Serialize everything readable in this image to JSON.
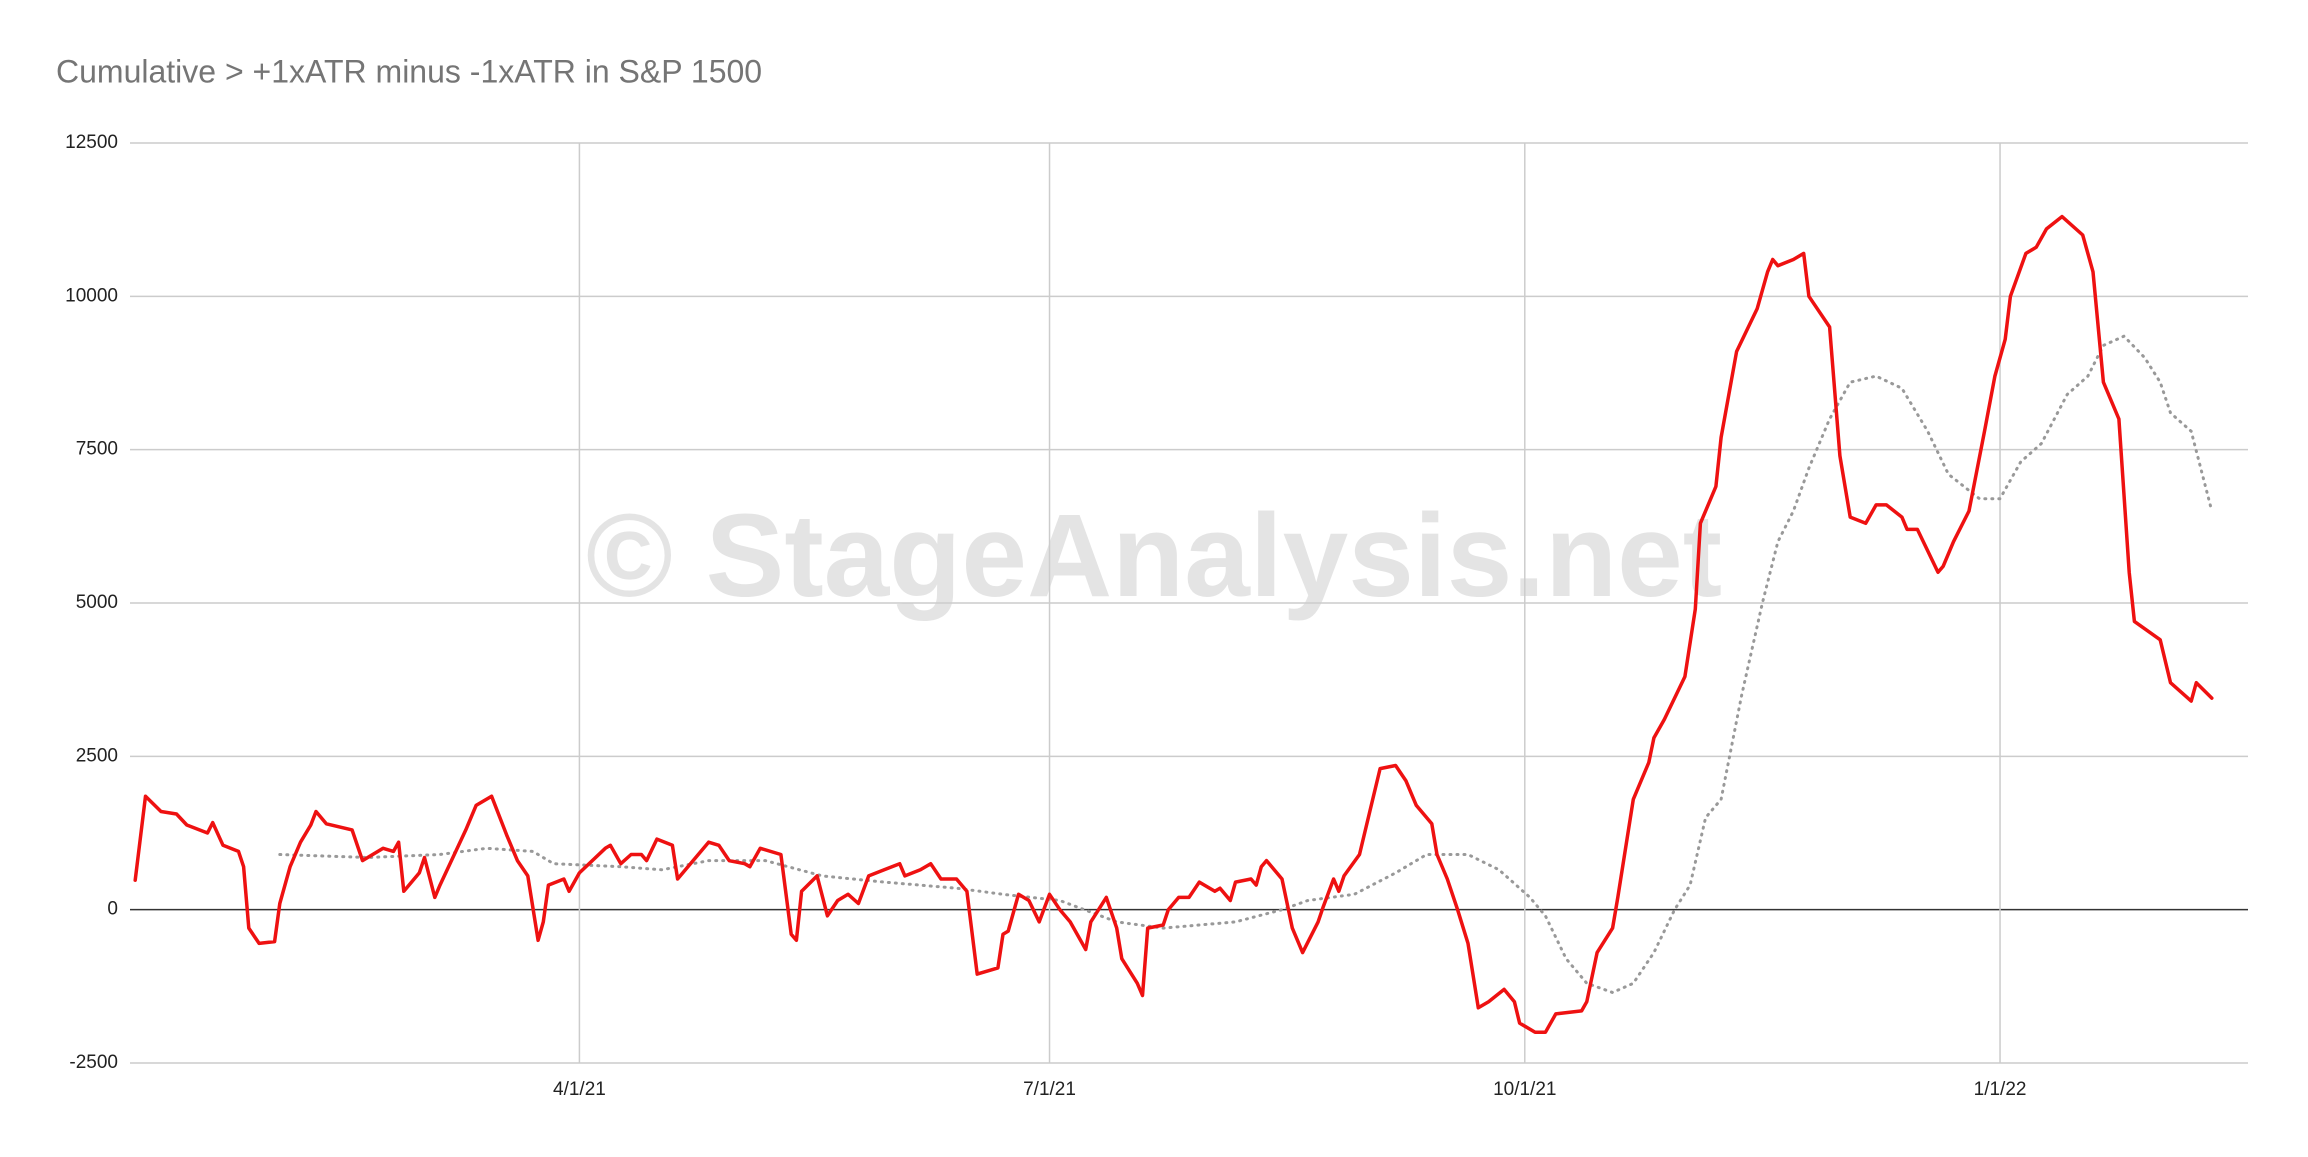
{
  "chart_data": {
    "type": "line",
    "title": "Cumulative > +1xATR minus -1xATR in S&P 1500",
    "watermark": "© StageAnalysis.net",
    "xlim": [
      "1/4/21",
      "2/18/22"
    ],
    "xticks": [
      "4/1/21",
      "7/1/21",
      "10/1/21",
      "1/1/22"
    ],
    "ylim": [
      -2500,
      12500
    ],
    "yticks": [
      -2500,
      0,
      2500,
      5000,
      7500,
      10000,
      12500
    ],
    "grid": true,
    "series": [
      {
        "color": "#ee1111",
        "style": "solid",
        "x": [
          "1/5/21",
          "1/7/21",
          "1/10/21",
          "1/13/21",
          "1/15/21",
          "1/19/21",
          "1/20/21",
          "1/22/21",
          "1/25/21",
          "1/26/21",
          "1/27/21",
          "1/29/21",
          "2/1/21",
          "2/2/21",
          "2/4/21",
          "2/6/21",
          "2/8/21",
          "2/9/21",
          "2/11/21",
          "2/16/21",
          "2/18/21",
          "2/22/21",
          "2/24/21",
          "2/25/21",
          "2/26/21",
          "3/1/21",
          "3/2/21",
          "3/4/21",
          "3/5/21",
          "3/10/21",
          "3/12/21",
          "3/15/21",
          "3/18/21",
          "3/20/21",
          "3/22/21",
          "3/24/21",
          "3/25/21",
          "3/26/21",
          "3/29/21",
          "3/30/21",
          "4/1/21",
          "4/6/21",
          "4/7/21",
          "4/9/21",
          "4/11/21",
          "4/13/21",
          "4/14/21",
          "4/16/21",
          "4/19/21",
          "4/20/21",
          "4/23/21",
          "4/26/21",
          "4/28/21",
          "4/30/21",
          "5/3/21",
          "5/4/21",
          "5/6/21",
          "5/10/21",
          "5/12/21",
          "5/13/21",
          "5/14/21",
          "5/17/21",
          "5/19/21",
          "5/21/21",
          "5/23/21",
          "5/25/21",
          "5/27/21",
          "5/30/21",
          "6/2/21",
          "6/3/21",
          "6/6/21",
          "6/8/21",
          "6/10/21",
          "6/13/21",
          "6/15/21",
          "6/17/21",
          "6/21/21",
          "6/22/21",
          "6/23/21",
          "6/25/21",
          "6/27/21",
          "6/29/21",
          "7/1/21",
          "7/3/21",
          "7/5/21",
          "7/8/21",
          "7/9/21",
          "7/12/21",
          "7/14/21",
          "7/15/21",
          "7/18/21",
          "7/19/21",
          "7/20/21",
          "7/23/21",
          "7/24/21",
          "7/26/21",
          "7/28/21",
          "7/30/21",
          "8/2/21",
          "8/3/21",
          "8/5/21",
          "8/6/21",
          "8/9/21",
          "8/10/21",
          "8/11/21",
          "8/12/21",
          "8/13/21",
          "8/15/21",
          "8/17/21",
          "8/19/21",
          "8/22/21",
          "8/23/21",
          "8/25/21",
          "8/26/21",
          "8/27/21",
          "8/30/21",
          "9/1/21",
          "9/3/21",
          "9/6/21",
          "9/8/21",
          "9/10/21",
          "9/13/21",
          "9/14/21",
          "9/16/21",
          "9/18/21",
          "9/20/21",
          "9/22/21",
          "9/24/21",
          "9/27/21",
          "9/29/21",
          "9/30/21",
          "10/3/21",
          "10/5/21",
          "10/7/21",
          "10/12/21",
          "10/13/21",
          "10/15/21",
          "10/18/21",
          "10/19/21",
          "10/22/21",
          "10/25/21",
          "10/26/21",
          "10/28/21",
          "11/1/21",
          "11/3/21",
          "11/4/21",
          "11/7/21",
          "11/8/21",
          "11/11/21",
          "11/15/21",
          "11/17/21",
          "11/18/21",
          "11/19/21",
          "11/22/21",
          "11/24/21",
          "11/25/21",
          "11/29/21",
          "12/1/21",
          "12/3/21",
          "12/6/21",
          "12/8/21",
          "12/10/21",
          "12/13/21",
          "12/14/21",
          "12/16/21",
          "12/20/21",
          "12/21/21",
          "12/23/21",
          "12/26/21",
          "12/29/21",
          "12/31/21",
          "1/2/22",
          "1/3/22",
          "1/6/22",
          "1/8/22",
          "1/10/22",
          "1/13/22",
          "1/17/22",
          "1/19/22",
          "1/21/22",
          "1/24/22",
          "1/26/22",
          "1/27/22",
          "2/1/22",
          "2/3/22",
          "2/7/22",
          "2/8/22",
          "2/11/22"
        ],
        "values": [
          480,
          1850,
          1600,
          1560,
          1380,
          1250,
          1420,
          1050,
          950,
          700,
          -300,
          -550,
          -520,
          100,
          700,
          1100,
          1380,
          1600,
          1400,
          1300,
          800,
          1000,
          950,
          1100,
          300,
          600,
          850,
          200,
          400,
          1300,
          1700,
          1850,
          1200,
          800,
          550,
          -500,
          -200,
          400,
          500,
          300,
          600,
          1000,
          1050,
          750,
          900,
          900,
          800,
          1150,
          1050,
          500,
          800,
          1100,
          1050,
          800,
          750,
          700,
          1000,
          900,
          -400,
          -500,
          300,
          550,
          -100,
          150,
          250,
          100,
          550,
          650,
          750,
          550,
          650,
          750,
          500,
          500,
          300,
          -1050,
          -950,
          -400,
          -350,
          250,
          150,
          -200,
          250,
          0,
          -200,
          -650,
          -200,
          200,
          -300,
          -800,
          -1200,
          -1400,
          -300,
          -250,
          0,
          200,
          200,
          450,
          300,
          350,
          150,
          450,
          500,
          400,
          700,
          800,
          700,
          500,
          -300,
          -700,
          -200,
          50,
          500,
          300,
          550,
          900,
          1600,
          2300,
          2350,
          2100,
          1700,
          1400,
          900,
          500,
          0,
          -550,
          -1600,
          -1500,
          -1300,
          -1500,
          -1850,
          -2000,
          -2000,
          -1700,
          -1650,
          -1500,
          -700,
          -300,
          200,
          1800,
          2400,
          2800,
          3100,
          3800,
          4900,
          6300,
          6900,
          7700,
          9100,
          9800,
          10400,
          10600,
          10500,
          10600,
          10700,
          10000,
          9500,
          7400,
          6400,
          6300,
          6600,
          6600,
          6400,
          6200,
          6200,
          5500,
          5600,
          6000,
          6500,
          7800,
          8700,
          9300,
          10000,
          10700,
          10800,
          11100,
          11300,
          11000,
          10400,
          8600,
          8000,
          5500,
          4700,
          4400,
          3700,
          3400,
          3700,
          3450
        ]
      },
      {
        "color": "#999999",
        "style": "dotted",
        "x": [
          "2/2/21",
          "2/19/21",
          "3/5/21",
          "3/14/21",
          "3/23/21",
          "3/27/21",
          "4/9/21",
          "4/17/21",
          "4/26/21",
          "5/7/21",
          "5/18/21",
          "5/30/21",
          "6/13/21",
          "6/22/21",
          "7/3/21",
          "7/14/21",
          "7/23/21",
          "8/6/21",
          "8/15/21",
          "8/20/21",
          "8/29/21",
          "9/6/21",
          "9/12/21",
          "9/20/21",
          "9/26/21",
          "10/2/21",
          "10/5/21",
          "10/9/21",
          "10/13/21",
          "10/18/21",
          "10/22/21",
          "10/26/21",
          "10/30/21",
          "11/2/21",
          "11/5/21",
          "11/8/21",
          "11/12/21",
          "11/16/21",
          "11/19/21",
          "11/22/21",
          "11/25/21",
          "11/29/21",
          "12/3/21",
          "12/8/21",
          "12/13/21",
          "12/18/21",
          "12/22/21",
          "12/28/21",
          "1/1/22",
          "1/5/22",
          "1/9/22",
          "1/14/22",
          "1/18/22",
          "1/21/22",
          "1/25/22",
          "1/29/22",
          "2/1/22",
          "2/3/22",
          "2/7/22",
          "2/11/22"
        ],
        "values": [
          900,
          850,
          900,
          1000,
          950,
          750,
          700,
          650,
          800,
          800,
          550,
          450,
          350,
          250,
          150,
          -200,
          -300,
          -200,
          0,
          150,
          250,
          600,
          900,
          900,
          650,
          200,
          -100,
          -800,
          -1200,
          -1350,
          -1200,
          -700,
          0,
          400,
          1500,
          1800,
          3500,
          5000,
          6000,
          6500,
          7200,
          8000,
          8600,
          8700,
          8500,
          7800,
          7100,
          6700,
          6700,
          7300,
          7600,
          8400,
          8700,
          9200,
          9350,
          9000,
          8600,
          8100,
          7800,
          6500
        ]
      }
    ]
  }
}
